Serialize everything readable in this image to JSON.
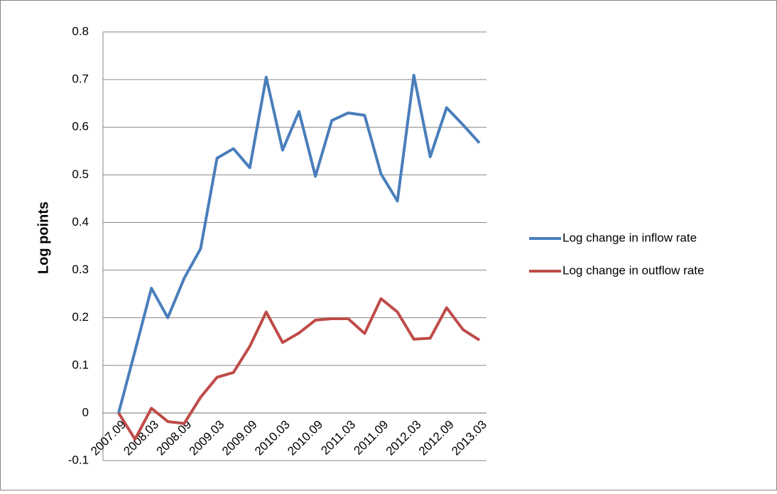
{
  "chart_data": {
    "type": "line",
    "y_label": "Log points",
    "categories": [
      "2007.09",
      null,
      "2008.03",
      null,
      "2008.09",
      null,
      "2009.03",
      null,
      "2009.09",
      null,
      "2010.03",
      null,
      "2010.09",
      null,
      "2011.03",
      null,
      "2011.09",
      null,
      "2012.03",
      null,
      "2012.09",
      null,
      "2013.03"
    ],
    "series": [
      {
        "name": "Log change in inflow rate",
        "color": "#4a7ebb",
        "values": [
          0,
          0.13,
          0.262,
          0.2,
          0.283,
          0.345,
          0.535,
          0.555,
          0.515,
          0.705,
          0.552,
          0.633,
          0.497,
          0.614,
          0.63,
          0.625,
          0.502,
          0.445,
          0.709,
          0.538,
          0.641,
          0.605,
          0.567
        ]
      },
      {
        "name": "Log change in outflow rate",
        "color": "#be4b48",
        "values": [
          0,
          -0.055,
          0.01,
          -0.018,
          -0.022,
          0.033,
          0.075,
          0.085,
          0.14,
          0.212,
          0.148,
          0.168,
          0.195,
          0.198,
          0.198,
          0.167,
          0.24,
          0.212,
          0.155,
          0.157,
          0.221,
          0.175,
          0.153
        ]
      }
    ],
    "ylim": [
      -0.1,
      0.8
    ],
    "yticks": [
      -0.1,
      0,
      0.1,
      0.2,
      0.3,
      0.4,
      0.5,
      0.6,
      0.7,
      0.8
    ],
    "grid": true,
    "legend": "right"
  }
}
